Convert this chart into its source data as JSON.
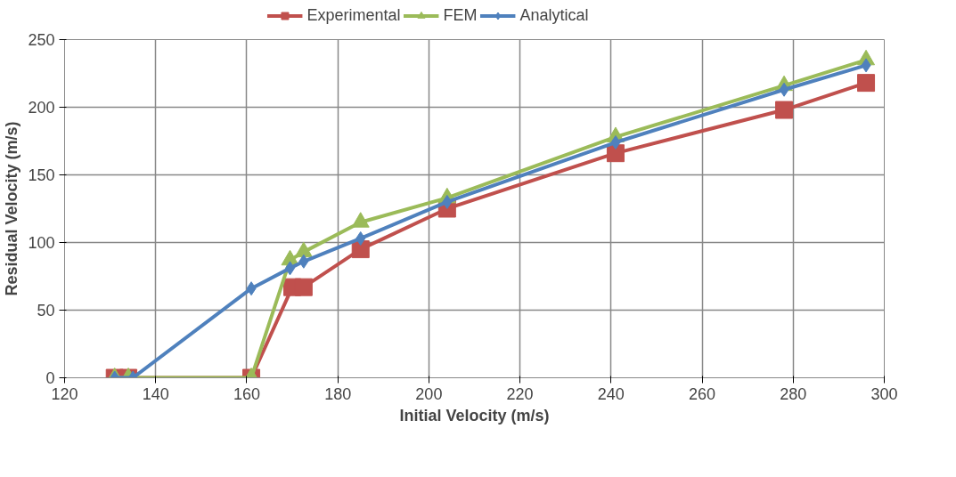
{
  "chart_data": {
    "type": "line",
    "xlabel": "Initial Velocity (m/s)",
    "ylabel": "Residual Velocity (m/s)",
    "xlim": [
      120,
      300
    ],
    "xticks": [
      120,
      140,
      160,
      180,
      200,
      220,
      240,
      260,
      280,
      300
    ],
    "ylim": [
      0,
      250
    ],
    "yticks": [
      0,
      50,
      100,
      150,
      200,
      250
    ],
    "grid": true,
    "legend": "top",
    "line_style": "solid",
    "series": [
      {
        "name": "Experimental",
        "color": "#c0504d",
        "marker": "square",
        "x": [
          131,
          134,
          161,
          170,
          172.5,
          185,
          204,
          241,
          278,
          296
        ],
        "values": [
          0,
          0,
          0,
          67,
          67,
          95,
          125,
          166,
          198,
          218
        ]
      },
      {
        "name": "FEM",
        "color": "#9bbb59",
        "marker": "triangle",
        "x": [
          131,
          134,
          161,
          169.5,
          172.5,
          185,
          204,
          241,
          278,
          296
        ],
        "values": [
          0,
          0,
          0,
          87,
          93,
          115,
          133,
          178,
          216,
          235
        ]
      },
      {
        "name": "Analytical",
        "color": "#4f81bd",
        "marker": "diamond",
        "x": [
          131,
          135,
          161,
          169.5,
          172.5,
          185,
          204,
          241,
          278,
          296
        ],
        "values": [
          0,
          0,
          66,
          81,
          86,
          103,
          130,
          174,
          213,
          231
        ]
      }
    ]
  }
}
